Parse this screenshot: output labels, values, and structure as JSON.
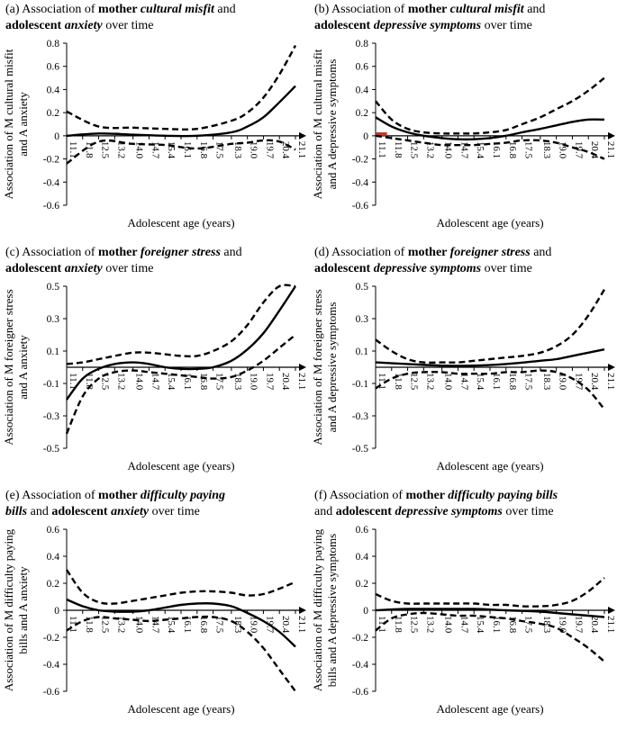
{
  "chart_data": [
    {
      "id": "a",
      "type": "line",
      "title_parts": [
        {
          "t": "(a) Association of ",
          "s": "n"
        },
        {
          "t": "mother ",
          "s": "b"
        },
        {
          "t": "cultural misfit",
          "s": "bi"
        },
        {
          "t": " and",
          "s": "n"
        },
        {
          "br": true
        },
        {
          "t": "adolescent ",
          "s": "b"
        },
        {
          "t": "anxiety",
          "s": "bi"
        },
        {
          "t": " over time",
          "s": "n"
        }
      ],
      "ylabel_lines": [
        "Association of M cultural misfit",
        "and A anxiety"
      ],
      "xlabel": "Adolescent age (years)",
      "ylim": [
        -0.6,
        0.8
      ],
      "yticks": [
        "0.8",
        "0.6",
        "0.4",
        "0.2",
        "0",
        "-0.2",
        "-0.4",
        "-0.6"
      ],
      "x_tick_labels": [
        "11.1",
        "11.8",
        "12.5",
        "13.2",
        "14.0",
        "14.7",
        "15.4",
        "16.1",
        "16.8",
        "17.5",
        "18.3",
        "19.0",
        "19.7",
        "20.4",
        "21.1"
      ],
      "x_range": [
        11.1,
        21.1
      ],
      "series": [
        {
          "name": "estimate",
          "style": "solid",
          "x": [
            11.1,
            12.5,
            14.0,
            15.4,
            16.8,
            18.3,
            19.0,
            19.7,
            20.4,
            21.1
          ],
          "y": [
            0.0,
            0.02,
            0.01,
            0.0,
            0.0,
            0.03,
            0.08,
            0.16,
            0.29,
            0.43
          ]
        },
        {
          "name": "upper CI",
          "style": "dashed",
          "x": [
            11.1,
            12.5,
            14.0,
            15.4,
            16.8,
            18.3,
            19.0,
            19.7,
            20.4,
            21.1
          ],
          "y": [
            0.21,
            0.08,
            0.07,
            0.06,
            0.06,
            0.13,
            0.2,
            0.33,
            0.53,
            0.78
          ]
        },
        {
          "name": "lower CI",
          "style": "dashed",
          "x": [
            11.1,
            12.5,
            14.0,
            15.4,
            16.8,
            18.3,
            19.0,
            19.7,
            20.4,
            21.1
          ],
          "y": [
            -0.24,
            -0.05,
            -0.07,
            -0.08,
            -0.11,
            -0.07,
            -0.06,
            -0.04,
            -0.05,
            -0.12
          ]
        }
      ]
    },
    {
      "id": "b",
      "type": "line",
      "title_parts": [
        {
          "t": "(b) Association of ",
          "s": "n"
        },
        {
          "t": "mother ",
          "s": "b"
        },
        {
          "t": "cultural misfit",
          "s": "bi"
        },
        {
          "t": " and",
          "s": "n"
        },
        {
          "br": true
        },
        {
          "t": "adolescent ",
          "s": "b"
        },
        {
          "t": "depressive symptoms",
          "s": "bi"
        },
        {
          "t": " over time",
          "s": "n"
        }
      ],
      "ylabel_lines": [
        "Association of M cultural misfit",
        "and A depressive symptoms"
      ],
      "xlabel": "Adolescent age (years)",
      "ylim": [
        -0.6,
        0.8
      ],
      "yticks": [
        "0.8",
        "0.6",
        "0.4",
        "0.2",
        "0",
        "-0.2",
        "-0.4",
        "-0.6"
      ],
      "x_tick_labels": [
        "11.1",
        "11.8",
        "12.5",
        "13.2",
        "14.0",
        "14.7",
        "15.4",
        "16.1",
        "16.8",
        "17.5",
        "18.3",
        "19.0",
        "19.7",
        "20.4",
        "21.1"
      ],
      "x_range": [
        11.1,
        21.1
      ],
      "highlight": {
        "x": [
          11.1,
          11.6
        ],
        "y": [
          0.0,
          0.03
        ],
        "color": "#c0392b"
      },
      "series": [
        {
          "name": "estimate",
          "style": "solid",
          "x": [
            11.1,
            11.8,
            12.5,
            13.2,
            14.0,
            14.7,
            15.4,
            16.1,
            16.8,
            17.5,
            18.3,
            19.0,
            19.7,
            20.4,
            21.1
          ],
          "y": [
            0.16,
            0.08,
            0.03,
            0.0,
            -0.02,
            -0.03,
            -0.03,
            -0.02,
            0.0,
            0.03,
            0.06,
            0.09,
            0.12,
            0.14,
            0.14
          ]
        },
        {
          "name": "upper CI",
          "style": "dashed",
          "x": [
            11.1,
            11.8,
            12.5,
            13.2,
            14.0,
            14.7,
            15.4,
            16.1,
            16.8,
            17.5,
            18.3,
            19.0,
            19.7,
            20.4,
            21.1
          ],
          "y": [
            0.3,
            0.14,
            0.06,
            0.03,
            0.02,
            0.02,
            0.02,
            0.03,
            0.05,
            0.1,
            0.16,
            0.23,
            0.3,
            0.39,
            0.5
          ]
        },
        {
          "name": "lower CI",
          "style": "dashed",
          "x": [
            11.1,
            11.8,
            12.5,
            13.2,
            14.0,
            14.7,
            15.4,
            16.1,
            16.8,
            17.5,
            18.3,
            19.0,
            19.7,
            20.4,
            21.1
          ],
          "y": [
            0.0,
            -0.02,
            -0.04,
            -0.06,
            -0.08,
            -0.08,
            -0.08,
            -0.07,
            -0.06,
            -0.04,
            -0.04,
            -0.06,
            -0.1,
            -0.14,
            -0.2
          ]
        }
      ]
    },
    {
      "id": "c",
      "type": "line",
      "title_parts": [
        {
          "t": "(c) Association of ",
          "s": "n"
        },
        {
          "t": "mother ",
          "s": "b"
        },
        {
          "t": "foreigner stress",
          "s": "bi"
        },
        {
          "t": " and",
          "s": "n"
        },
        {
          "br": true
        },
        {
          "t": "adolescent ",
          "s": "b"
        },
        {
          "t": "anxiety",
          "s": "bi"
        },
        {
          "t": " over time",
          "s": "n"
        }
      ],
      "ylabel_lines": [
        "Association of M foreigner stress",
        "and A anxiety"
      ],
      "xlabel": "Adolescent age (years)",
      "ylim": [
        -0.5,
        0.5
      ],
      "yticks": [
        "0.5",
        "0.3",
        "0.1",
        "-0.1",
        "-0.3",
        "-0.5"
      ],
      "x_tick_labels": [
        "11.1",
        "11.8",
        "12.5",
        "13.2",
        "14.0",
        "14.7",
        "15.4",
        "16.1",
        "16.8",
        "17.5",
        "18.3",
        "19.0",
        "19.7",
        "20.4",
        "21.1"
      ],
      "x_range": [
        11.1,
        21.1
      ],
      "series": [
        {
          "name": "estimate",
          "style": "solid",
          "x": [
            11.1,
            11.8,
            12.5,
            13.2,
            14.0,
            14.7,
            15.4,
            16.1,
            16.8,
            17.5,
            18.3,
            19.0,
            19.7,
            20.4,
            21.1
          ],
          "y": [
            -0.2,
            -0.07,
            -0.01,
            0.02,
            0.03,
            0.02,
            0.0,
            -0.01,
            -0.01,
            0.0,
            0.04,
            0.11,
            0.21,
            0.35,
            0.5
          ]
        },
        {
          "name": "upper CI",
          "style": "dashed",
          "x": [
            11.1,
            11.8,
            12.5,
            13.2,
            14.0,
            14.7,
            15.4,
            16.1,
            16.8,
            17.5,
            18.3,
            19.0,
            19.7,
            20.4,
            21.1
          ],
          "y": [
            0.02,
            0.03,
            0.05,
            0.07,
            0.09,
            0.09,
            0.08,
            0.07,
            0.07,
            0.1,
            0.16,
            0.26,
            0.4,
            0.5,
            0.5
          ]
        },
        {
          "name": "lower CI",
          "style": "dashed",
          "x": [
            11.1,
            11.8,
            12.5,
            13.2,
            14.0,
            14.7,
            15.4,
            16.1,
            16.8,
            17.5,
            18.3,
            19.0,
            19.7,
            20.4,
            21.1
          ],
          "y": [
            -0.41,
            -0.18,
            -0.07,
            -0.03,
            -0.02,
            -0.03,
            -0.04,
            -0.05,
            -0.06,
            -0.07,
            -0.06,
            -0.02,
            0.04,
            0.12,
            0.2
          ]
        }
      ]
    },
    {
      "id": "d",
      "type": "line",
      "title_parts": [
        {
          "t": "(d) Association of ",
          "s": "n"
        },
        {
          "t": "mother ",
          "s": "b"
        },
        {
          "t": "foreigner stress",
          "s": "bi"
        },
        {
          "t": " and",
          "s": "n"
        },
        {
          "br": true
        },
        {
          "t": "adolescent ",
          "s": "b"
        },
        {
          "t": "depressive symptoms",
          "s": "bi"
        },
        {
          "t": " over time",
          "s": "n"
        }
      ],
      "ylabel_lines": [
        "Association of M foreigner stress",
        "and A depressive symptoms"
      ],
      "xlabel": "Adolescent age (years)",
      "ylim": [
        -0.5,
        0.5
      ],
      "yticks": [
        "0.5",
        "0.3",
        "0.1",
        "-0.1",
        "-0.3",
        "-0.5"
      ],
      "x_tick_labels": [
        "11.1",
        "11.8",
        "12.5",
        "13.2",
        "14.0",
        "14.7",
        "15.4",
        "16.1",
        "16.8",
        "17.5",
        "18.3",
        "19.0",
        "19.7",
        "20.4",
        "21.1"
      ],
      "x_range": [
        11.1,
        21.1
      ],
      "series": [
        {
          "name": "estimate",
          "style": "solid",
          "x": [
            11.1,
            12.5,
            14.0,
            15.4,
            16.8,
            18.3,
            19.0,
            19.7,
            20.4,
            21.1
          ],
          "y": [
            0.03,
            0.02,
            0.01,
            0.01,
            0.02,
            0.04,
            0.05,
            0.07,
            0.09,
            0.11
          ]
        },
        {
          "name": "upper CI",
          "style": "dashed",
          "x": [
            11.1,
            11.8,
            12.5,
            13.2,
            14.0,
            14.7,
            15.4,
            16.1,
            16.8,
            17.5,
            18.3,
            19.0,
            19.7,
            20.4,
            21.1
          ],
          "y": [
            0.17,
            0.1,
            0.05,
            0.03,
            0.03,
            0.03,
            0.04,
            0.05,
            0.06,
            0.07,
            0.09,
            0.13,
            0.2,
            0.32,
            0.48
          ]
        },
        {
          "name": "lower CI",
          "style": "dashed",
          "x": [
            11.1,
            11.8,
            12.5,
            13.2,
            14.0,
            14.7,
            15.4,
            16.1,
            16.8,
            17.5,
            18.3,
            19.0,
            19.7,
            20.4,
            21.1
          ],
          "y": [
            -0.13,
            -0.07,
            -0.04,
            -0.03,
            -0.03,
            -0.04,
            -0.04,
            -0.04,
            -0.03,
            -0.03,
            -0.02,
            -0.03,
            -0.07,
            -0.14,
            -0.26
          ]
        }
      ]
    },
    {
      "id": "e",
      "type": "line",
      "title_parts": [
        {
          "t": "(e) Association of ",
          "s": "n"
        },
        {
          "t": "mother ",
          "s": "b"
        },
        {
          "t": "difficulty paying",
          "s": "bi"
        },
        {
          "br": true
        },
        {
          "t": "bills",
          "s": "bi"
        },
        {
          "t": " and ",
          "s": "n"
        },
        {
          "t": "adolescent ",
          "s": "b"
        },
        {
          "t": "anxiety",
          "s": "bi"
        },
        {
          "t": " over time",
          "s": "n"
        }
      ],
      "ylabel_lines": [
        "Association of M difficulty paying",
        "bills and A anxiety"
      ],
      "xlabel": "Adolescent age (years)",
      "ylim": [
        -0.6,
        0.6
      ],
      "yticks": [
        "0.6",
        "0.4",
        "0.2",
        "0",
        "-0.2",
        "-0.4",
        "-0.6"
      ],
      "x_tick_labels": [
        "11.1",
        "11.8",
        "12.5",
        "13.2",
        "14.0",
        "14.7",
        "15.4",
        "16.1",
        "16.8",
        "17.5",
        "18.3",
        "19.0",
        "19.7",
        "20.4",
        "21.1"
      ],
      "x_range": [
        11.1,
        21.1
      ],
      "series": [
        {
          "name": "estimate",
          "style": "solid",
          "x": [
            11.1,
            11.8,
            12.5,
            13.2,
            14.0,
            14.7,
            15.4,
            16.1,
            16.8,
            17.5,
            18.3,
            19.0,
            19.7,
            20.4,
            21.1
          ],
          "y": [
            0.08,
            0.03,
            0.0,
            -0.01,
            -0.01,
            0.0,
            0.02,
            0.04,
            0.05,
            0.05,
            0.03,
            -0.02,
            -0.08,
            -0.16,
            -0.27
          ]
        },
        {
          "name": "upper CI",
          "style": "dashed",
          "x": [
            11.1,
            11.8,
            12.5,
            13.2,
            14.0,
            14.7,
            15.4,
            16.1,
            16.8,
            17.5,
            18.3,
            19.0,
            19.7,
            20.4,
            21.1
          ],
          "y": [
            0.3,
            0.13,
            0.06,
            0.05,
            0.07,
            0.09,
            0.11,
            0.13,
            0.14,
            0.14,
            0.13,
            0.11,
            0.12,
            0.16,
            0.21
          ]
        },
        {
          "name": "lower CI",
          "style": "dashed",
          "x": [
            11.1,
            11.8,
            12.5,
            13.2,
            14.0,
            14.7,
            15.4,
            16.1,
            16.8,
            17.5,
            18.3,
            19.0,
            19.7,
            20.4,
            21.1
          ],
          "y": [
            -0.15,
            -0.08,
            -0.05,
            -0.06,
            -0.07,
            -0.08,
            -0.07,
            -0.06,
            -0.05,
            -0.05,
            -0.08,
            -0.16,
            -0.28,
            -0.44,
            -0.6
          ]
        }
      ]
    },
    {
      "id": "f",
      "type": "line",
      "title_parts": [
        {
          "t": "(f) Association of ",
          "s": "n"
        },
        {
          "t": "mother ",
          "s": "b"
        },
        {
          "t": "difficulty paying bills",
          "s": "bi"
        },
        {
          "br": true
        },
        {
          "t": "and ",
          "s": "n"
        },
        {
          "t": "adolescent ",
          "s": "b"
        },
        {
          "t": "depressive symptoms",
          "s": "bi"
        },
        {
          "t": " over time",
          "s": "n"
        }
      ],
      "ylabel_lines": [
        "Association of M difficulty paying",
        "bills and A depressive symptoms"
      ],
      "xlabel": "Adolescent age (years)",
      "ylim": [
        -0.6,
        0.6
      ],
      "yticks": [
        "0.6",
        "0.4",
        "0.2",
        "0",
        "-0.2",
        "-0.4",
        "-0.6"
      ],
      "x_tick_labels": [
        "11.1",
        "11.8",
        "12.5",
        "13.2",
        "14.0",
        "14.7",
        "15.4",
        "16.1",
        "16.8",
        "17.5",
        "18.3",
        "19.0",
        "19.7",
        "20.4",
        "21.1"
      ],
      "x_range": [
        11.1,
        21.1
      ],
      "series": [
        {
          "name": "estimate",
          "style": "solid",
          "x": [
            11.1,
            12.5,
            14.0,
            15.4,
            16.8,
            18.3,
            19.0,
            19.7,
            20.4,
            21.1
          ],
          "y": [
            0.0,
            0.01,
            0.01,
            0.01,
            0.0,
            -0.01,
            -0.02,
            -0.03,
            -0.04,
            -0.05
          ]
        },
        {
          "name": "upper CI",
          "style": "dashed",
          "x": [
            11.1,
            11.8,
            12.5,
            13.2,
            14.0,
            14.7,
            15.4,
            16.1,
            16.8,
            17.5,
            18.3,
            19.0,
            19.7,
            20.4,
            21.1
          ],
          "y": [
            0.12,
            0.07,
            0.05,
            0.05,
            0.05,
            0.05,
            0.05,
            0.04,
            0.04,
            0.03,
            0.03,
            0.04,
            0.07,
            0.14,
            0.24
          ]
        },
        {
          "name": "lower CI",
          "style": "dashed",
          "x": [
            11.1,
            11.8,
            12.5,
            13.2,
            14.0,
            14.7,
            15.4,
            16.1,
            16.8,
            17.5,
            18.3,
            19.0,
            19.7,
            20.4,
            21.1
          ],
          "y": [
            -0.15,
            -0.06,
            -0.03,
            -0.02,
            -0.03,
            -0.04,
            -0.04,
            -0.05,
            -0.06,
            -0.08,
            -0.1,
            -0.13,
            -0.2,
            -0.28,
            -0.38
          ]
        }
      ]
    }
  ]
}
